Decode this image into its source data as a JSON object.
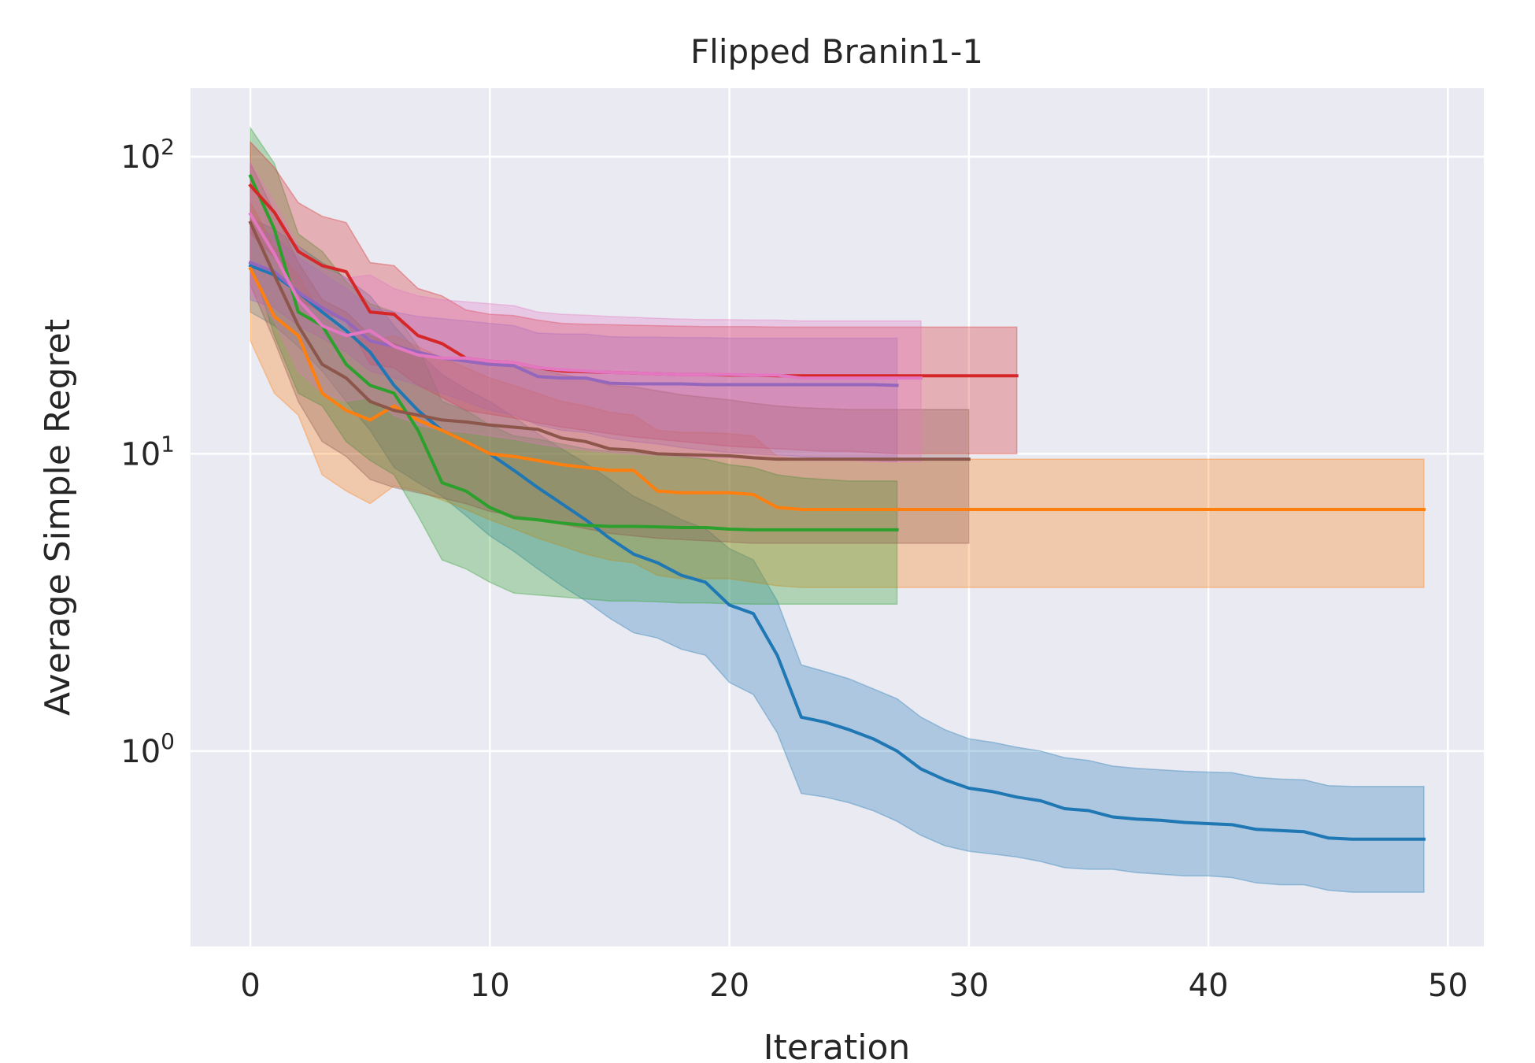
{
  "chart_data": {
    "type": "line",
    "title": "Flipped Branin1-1",
    "xlabel": "Iteration",
    "ylabel": "Average Simple Regret",
    "yscale": "log",
    "xlim": [
      -2.5,
      51.5
    ],
    "ylim": [
      0.22,
      170
    ],
    "xticks": [
      0,
      10,
      20,
      30,
      40,
      50
    ],
    "xtick_labels": [
      "0",
      "10",
      "20",
      "30",
      "40",
      "50"
    ],
    "yticks": [
      1,
      10,
      100
    ],
    "ytick_labels": [
      {
        "base": "10",
        "exp": "0"
      },
      {
        "base": "10",
        "exp": "1"
      },
      {
        "base": "10",
        "exp": "2"
      }
    ],
    "grid": true,
    "legend": false,
    "background": "#eaeaf2",
    "series": [
      {
        "color": "#1f77b4",
        "x": [
          0,
          1,
          2,
          3,
          4,
          5,
          6,
          7,
          8,
          9,
          10,
          11,
          12,
          13,
          14,
          15,
          16,
          17,
          18,
          19,
          20,
          21,
          22,
          23,
          24,
          25,
          26,
          27,
          28,
          29,
          30,
          31,
          32,
          33,
          34,
          35,
          36,
          37,
          38,
          39,
          40,
          41,
          42,
          43,
          44,
          45,
          46,
          47,
          48,
          49
        ],
        "mean": [
          43,
          40,
          35,
          30,
          26,
          22,
          17,
          14,
          12,
          11,
          10,
          8.8,
          7.7,
          6.8,
          6.0,
          5.2,
          4.6,
          4.3,
          3.9,
          3.7,
          3.1,
          2.9,
          2.1,
          1.3,
          1.25,
          1.18,
          1.1,
          1.0,
          0.87,
          0.8,
          0.75,
          0.73,
          0.7,
          0.68,
          0.64,
          0.63,
          0.6,
          0.59,
          0.585,
          0.575,
          0.57,
          0.565,
          0.545,
          0.54,
          0.535,
          0.51,
          0.505,
          0.505,
          0.505,
          0.505
        ],
        "lower": [
          30,
          27,
          23,
          19,
          15,
          12,
          9,
          8,
          7.2,
          6.2,
          5.3,
          4.7,
          4.1,
          3.6,
          3.2,
          2.8,
          2.5,
          2.4,
          2.2,
          2.1,
          1.7,
          1.55,
          1.15,
          0.72,
          0.7,
          0.67,
          0.63,
          0.58,
          0.52,
          0.48,
          0.46,
          0.45,
          0.44,
          0.425,
          0.405,
          0.4,
          0.4,
          0.39,
          0.385,
          0.38,
          0.38,
          0.375,
          0.36,
          0.355,
          0.355,
          0.34,
          0.335,
          0.335,
          0.335,
          0.335
        ],
        "upper": [
          62,
          57,
          50,
          44,
          39,
          34,
          27,
          22,
          18.5,
          16.5,
          15,
          13.3,
          11.7,
          10.4,
          9.3,
          8.2,
          7.2,
          6.6,
          6.0,
          5.6,
          4.8,
          4.4,
          3.2,
          1.95,
          1.85,
          1.75,
          1.62,
          1.5,
          1.3,
          1.18,
          1.1,
          1.07,
          1.03,
          1.0,
          0.95,
          0.93,
          0.89,
          0.875,
          0.865,
          0.855,
          0.85,
          0.845,
          0.815,
          0.805,
          0.8,
          0.765,
          0.76,
          0.76,
          0.76,
          0.76
        ]
      },
      {
        "color": "#ff7f0e",
        "x": [
          0,
          1,
          2,
          3,
          4,
          5,
          6,
          7,
          8,
          9,
          10,
          11,
          12,
          13,
          14,
          15,
          16,
          17,
          18,
          19,
          20,
          21,
          22,
          23,
          24,
          25,
          26,
          27,
          28,
          29,
          30,
          31,
          32,
          33,
          34,
          35,
          36,
          37,
          38,
          39,
          40,
          41,
          42,
          43,
          44,
          45,
          46,
          47,
          48,
          49
        ],
        "mean": [
          42,
          29,
          25,
          16,
          14,
          13,
          14.5,
          13,
          12,
          11,
          10,
          9.8,
          9.5,
          9.2,
          9,
          8.8,
          8.8,
          7.5,
          7.4,
          7.4,
          7.4,
          7.3,
          6.6,
          6.5,
          6.5,
          6.5,
          6.5,
          6.5,
          6.5,
          6.5,
          6.5,
          6.5,
          6.5,
          6.5,
          6.5,
          6.5,
          6.5,
          6.5,
          6.5,
          6.5,
          6.5,
          6.5,
          6.5,
          6.5,
          6.5,
          6.5,
          6.5,
          6.5,
          6.5,
          6.5
        ],
        "lower": [
          24,
          16,
          13.5,
          8.5,
          7.5,
          6.8,
          7.8,
          7.5,
          7,
          6.5,
          6,
          5.6,
          5.2,
          4.9,
          4.6,
          4.4,
          4.3,
          3.9,
          3.8,
          3.8,
          3.8,
          3.7,
          3.6,
          3.55,
          3.55,
          3.55,
          3.55,
          3.55,
          3.55,
          3.55,
          3.55,
          3.55,
          3.55,
          3.55,
          3.55,
          3.55,
          3.55,
          3.55,
          3.55,
          3.55,
          3.55,
          3.55,
          3.55,
          3.55,
          3.55,
          3.55,
          3.55,
          3.55,
          3.55,
          3.55
        ],
        "upper": [
          70,
          50,
          40,
          29,
          25,
          24,
          25,
          23,
          21,
          19.5,
          18,
          17,
          16,
          15,
          14.5,
          13.8,
          13.5,
          12,
          11.8,
          11.8,
          11.7,
          11.5,
          9.8,
          9.6,
          9.6,
          9.6,
          9.6,
          9.6,
          9.6,
          9.6,
          9.6,
          9.6,
          9.6,
          9.6,
          9.6,
          9.6,
          9.6,
          9.6,
          9.6,
          9.6,
          9.6,
          9.6,
          9.6,
          9.6,
          9.6,
          9.6,
          9.6,
          9.6,
          9.6,
          9.6
        ]
      },
      {
        "color": "#2ca02c",
        "x": [
          0,
          1,
          2,
          3,
          4,
          5,
          6,
          7,
          8,
          9,
          10,
          11,
          12,
          13,
          14,
          15,
          16,
          17,
          18,
          19,
          20,
          21,
          22,
          23,
          24,
          25,
          26,
          27
        ],
        "mean": [
          86,
          57,
          30,
          27,
          20,
          17,
          16,
          12,
          8,
          7.5,
          6.6,
          6.1,
          6.0,
          5.85,
          5.75,
          5.7,
          5.7,
          5.68,
          5.65,
          5.65,
          5.58,
          5.55,
          5.55,
          5.55,
          5.55,
          5.55,
          5.55,
          5.55
        ],
        "lower": [
          45,
          25,
          16,
          14.5,
          11,
          9.5,
          8.5,
          6.2,
          4.4,
          4.1,
          3.7,
          3.4,
          3.35,
          3.3,
          3.25,
          3.2,
          3.2,
          3.18,
          3.15,
          3.15,
          3.13,
          3.12,
          3.12,
          3.12,
          3.12,
          3.12,
          3.12,
          3.12
        ],
        "upper": [
          125,
          95,
          55,
          48,
          38,
          32,
          30,
          23,
          15,
          14,
          12.5,
          11.5,
          11.2,
          10.8,
          10.4,
          10.2,
          10.1,
          10.0,
          9.8,
          9.6,
          9.2,
          9.0,
          8.5,
          8.3,
          8.2,
          8.1,
          8.1,
          8.1
        ]
      },
      {
        "color": "#d62728",
        "x": [
          0,
          1,
          2,
          3,
          4,
          5,
          6,
          7,
          8,
          9,
          10,
          11,
          12,
          13,
          14,
          15,
          16,
          17,
          18,
          19,
          20,
          21,
          22,
          23,
          24,
          25,
          26,
          27,
          28,
          29,
          30,
          31,
          32
        ],
        "mean": [
          80,
          65,
          48,
          43,
          41,
          30,
          29.5,
          25,
          23.5,
          21,
          20.5,
          20.3,
          19.5,
          19,
          18.9,
          18.8,
          18.7,
          18.6,
          18.5,
          18.5,
          18.4,
          18.4,
          18.3,
          18.3,
          18.3,
          18.3,
          18.3,
          18.3,
          18.3,
          18.3,
          18.3,
          18.3,
          18.3
        ],
        "lower": [
          55,
          46,
          33,
          30,
          28,
          20,
          19.5,
          17,
          15.5,
          14,
          13.6,
          13.2,
          12.7,
          12.3,
          12.0,
          11.7,
          11.4,
          11.2,
          11.0,
          10.8,
          10.6,
          10.5,
          10.4,
          10.3,
          10.2,
          10.2,
          10.1,
          10.0,
          10.0,
          10.0,
          10.0,
          10.0,
          10.0
        ],
        "upper": [
          112,
          92,
          70,
          63,
          60,
          44,
          43,
          36,
          34,
          30.5,
          29.5,
          29.2,
          28.2,
          27.5,
          27.3,
          27.2,
          27.1,
          27.0,
          26.9,
          26.8,
          26.8,
          26.8,
          26.7,
          26.7,
          26.7,
          26.7,
          26.7,
          26.7,
          26.7,
          26.7,
          26.7,
          26.7,
          26.7
        ]
      },
      {
        "color": "#9467bd",
        "x": [
          0,
          1,
          2,
          3,
          4,
          5,
          6,
          7,
          8,
          9,
          10,
          11,
          12,
          13,
          14,
          15,
          16,
          17,
          18,
          19,
          20,
          21,
          22,
          23,
          24,
          25,
          26,
          27
        ],
        "mean": [
          44,
          41,
          35,
          31,
          28,
          24,
          23,
          22,
          21,
          20.5,
          20,
          19.8,
          18.2,
          18,
          18,
          17.3,
          17.2,
          17.2,
          17.2,
          17.1,
          17.1,
          17.1,
          17.1,
          17.1,
          17.1,
          17.1,
          17.1,
          17.0
        ],
        "lower": [
          33,
          31,
          27,
          24.5,
          22,
          19,
          18,
          17,
          16,
          15,
          14,
          13.5,
          12.5,
          12,
          11.8,
          11.3,
          11,
          10.8,
          10.5,
          10.3,
          10.1,
          10,
          9.9,
          9.8,
          9.7,
          9.6,
          9.5,
          9.4
        ],
        "upper": [
          58,
          54,
          46,
          40.5,
          36,
          31,
          30,
          29,
          28.5,
          28,
          27.5,
          27,
          25.5,
          25.3,
          25.3,
          24.8,
          24.7,
          24.7,
          24.6,
          24.6,
          24.5,
          24.5,
          24.5,
          24.5,
          24.5,
          24.5,
          24.5,
          24.5
        ]
      },
      {
        "color": "#8c564b",
        "x": [
          0,
          1,
          2,
          3,
          4,
          5,
          6,
          7,
          8,
          9,
          10,
          11,
          12,
          13,
          14,
          15,
          16,
          17,
          18,
          19,
          20,
          21,
          22,
          23,
          24,
          25,
          26,
          27,
          28,
          29,
          30
        ],
        "mean": [
          60,
          40,
          27,
          20,
          18,
          15,
          14,
          13.5,
          13,
          12.8,
          12.5,
          12.3,
          12.1,
          11.3,
          11,
          10.4,
          10.3,
          10,
          9.95,
          9.9,
          9.85,
          9.7,
          9.6,
          9.6,
          9.6,
          9.6,
          9.6,
          9.6,
          9.6,
          9.6,
          9.6
        ],
        "lower": [
          37,
          24,
          15,
          11,
          9.8,
          8.2,
          7.7,
          7.4,
          7.1,
          6.8,
          6.4,
          6.2,
          6,
          5.8,
          5.6,
          5.4,
          5.3,
          5.2,
          5.15,
          5.1,
          5.05,
          5,
          5,
          5,
          5,
          5,
          5,
          5,
          5,
          5,
          5
        ],
        "upper": [
          95,
          65,
          44,
          33,
          30,
          25,
          23.5,
          22,
          21,
          20.5,
          20,
          19.7,
          19.4,
          18.5,
          18,
          17,
          16.8,
          16.3,
          15.8,
          15.5,
          15.2,
          14.8,
          14.5,
          14.3,
          14.2,
          14.1,
          14.1,
          14.1,
          14.1,
          14.1,
          14.1
        ]
      },
      {
        "color": "#e377c2",
        "x": [
          0,
          1,
          2,
          3,
          4,
          5,
          6,
          7,
          8,
          9,
          10,
          11,
          12,
          13,
          14,
          15,
          16,
          17,
          18,
          19,
          20,
          21,
          22,
          23,
          24,
          25,
          26,
          27,
          28
        ],
        "mean": [
          64,
          47,
          33,
          27,
          25,
          26,
          23,
          21.5,
          21,
          21,
          20.5,
          20.3,
          19.5,
          19.2,
          19,
          18.8,
          18.7,
          18.6,
          18.5,
          18.5,
          18.5,
          18.4,
          18.4,
          18,
          18,
          18,
          18,
          18,
          18
        ],
        "lower": [
          35,
          28,
          19,
          16,
          15,
          15.5,
          13.5,
          12.5,
          12,
          11.8,
          11.5,
          11.2,
          10.8,
          10.5,
          10.3,
          10.1,
          10,
          9.9,
          9.8,
          9.7,
          9.7,
          9.6,
          9.6,
          9.5,
          9.5,
          9.5,
          9.4,
          9.4,
          9.4
        ],
        "upper": [
          95,
          70,
          50,
          42,
          39,
          40,
          36,
          34,
          33,
          32.5,
          32,
          31.5,
          30,
          29.5,
          29.3,
          29,
          28.8,
          28.6,
          28.4,
          28.3,
          28.3,
          28.2,
          28.2,
          28,
          28,
          28,
          28,
          28,
          28
        ]
      }
    ]
  }
}
